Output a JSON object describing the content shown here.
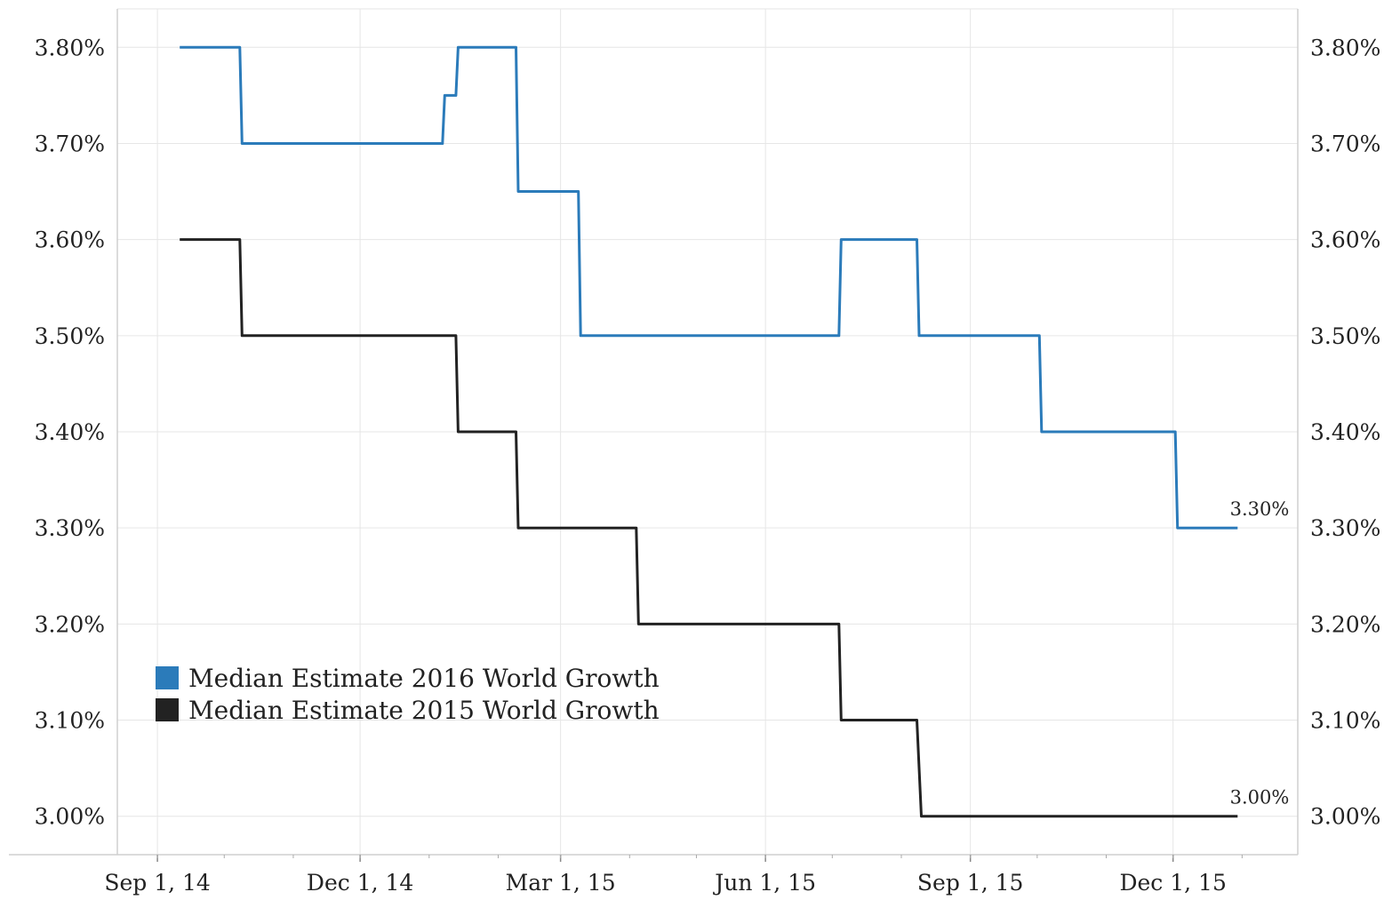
{
  "chart_data": {
    "type": "line",
    "title": "",
    "xlabel": "",
    "ylabel": "",
    "x_ticks": [
      "Sep 1, 14",
      "Dec 1, 14",
      "Mar 1, 15",
      "Jun 1, 15",
      "Sep 1, 15",
      "Dec 1, 15"
    ],
    "y_ticks": [
      "3.00%",
      "3.10%",
      "3.20%",
      "3.30%",
      "3.40%",
      "3.50%",
      "3.60%",
      "3.70%",
      "3.80%"
    ],
    "ylim": [
      2.96,
      3.84
    ],
    "xlim": [
      "2014-08-14",
      "2016-01-26"
    ],
    "y_axis_right": true,
    "grid": true,
    "legend_position": "lower-left",
    "series": [
      {
        "name": "Median Estimate 2016 World Growth",
        "color": "#2b7bba",
        "end_label": "3.30%",
        "points": [
          [
            "2014-09-11",
            3.8
          ],
          [
            "2014-10-08",
            3.8
          ],
          [
            "2014-10-09",
            3.7
          ],
          [
            "2015-01-07",
            3.7
          ],
          [
            "2015-01-08",
            3.75
          ],
          [
            "2015-01-13",
            3.75
          ],
          [
            "2015-01-14",
            3.8
          ],
          [
            "2015-02-09",
            3.8
          ],
          [
            "2015-02-10",
            3.65
          ],
          [
            "2015-03-09",
            3.65
          ],
          [
            "2015-03-10",
            3.5
          ],
          [
            "2015-07-04",
            3.5
          ],
          [
            "2015-07-05",
            3.6
          ],
          [
            "2015-08-08",
            3.6
          ],
          [
            "2015-08-09",
            3.5
          ],
          [
            "2015-10-02",
            3.5
          ],
          [
            "2015-10-03",
            3.4
          ],
          [
            "2015-12-02",
            3.4
          ],
          [
            "2015-12-03",
            3.3
          ],
          [
            "2015-12-30",
            3.3
          ]
        ]
      },
      {
        "name": "Median Estimate 2015 World Growth",
        "color": "#222222",
        "end_label": "3.00%",
        "points": [
          [
            "2014-09-11",
            3.6
          ],
          [
            "2014-10-08",
            3.6
          ],
          [
            "2014-10-09",
            3.5
          ],
          [
            "2015-01-13",
            3.5
          ],
          [
            "2015-01-14",
            3.4
          ],
          [
            "2015-02-09",
            3.4
          ],
          [
            "2015-02-10",
            3.3
          ],
          [
            "2015-04-04",
            3.3
          ],
          [
            "2015-04-05",
            3.2
          ],
          [
            "2015-07-04",
            3.2
          ],
          [
            "2015-07-05",
            3.1
          ],
          [
            "2015-08-08",
            3.1
          ],
          [
            "2015-08-10",
            3.0
          ],
          [
            "2015-12-30",
            3.0
          ]
        ]
      }
    ]
  }
}
